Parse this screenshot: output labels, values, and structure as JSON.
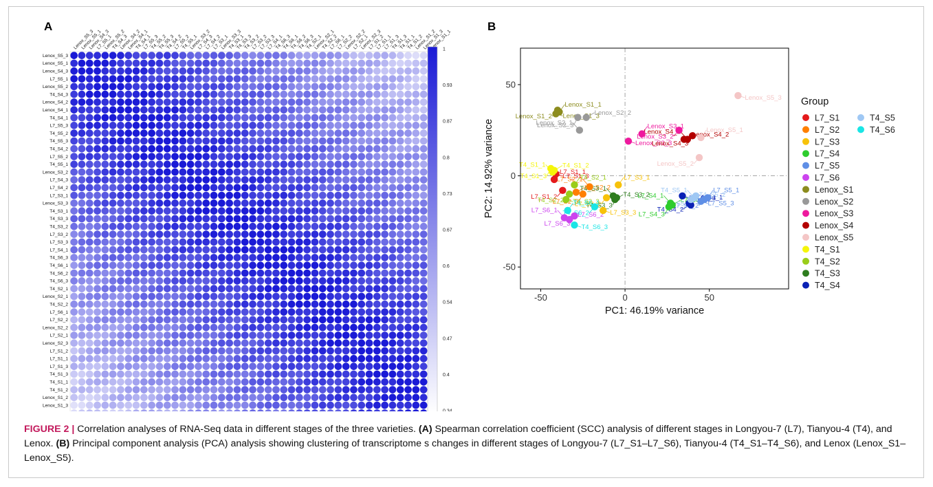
{
  "panel_labels": {
    "a": "A",
    "b": "B"
  },
  "caption": {
    "figure_label": "FIGURE 2 |",
    "sentence1": " Correlation analyses of RNA-Seq data in different stages of the three varieties. ",
    "part_a_marker": "(A)",
    "part_a_text": " Spearman correlation coefficient (SCC) analysis of different stages in Longyou-7 (L7), Tianyou-4 (T4), and Lenox. ",
    "part_b_marker": "(B)",
    "part_b_text": " Principal component analysis (PCA) analysis showing clustering of transcriptome s changes in different stages of Longyou-7 (L7_S1–L7_S6), Tianyou-4 (T4_S1–T4_S6), and Lenox (Lenox_S1–Lenox_S5)."
  },
  "chart_data": [
    {
      "type": "heatmap",
      "title": "",
      "row_labels": [
        "Lenox_S5_3",
        "Lenox_S5_1",
        "Lenox_S4_3",
        "L7_S5_1",
        "Lenox_S5_2",
        "T4_S4_3",
        "Lenox_S4_2",
        "Lenox_S4_1",
        "T4_S4_1",
        "L7_S5_3",
        "T4_S5_2",
        "T4_S5_3",
        "T4_S4_2",
        "L7_S5_2",
        "T4_S5_1",
        "Lenox_S3_2",
        "L7_S4_3",
        "L7_S4_2",
        "L7_S3_1",
        "Lenox_S3_3",
        "T4_S3_1",
        "T4_S3_3",
        "T4_S3_2",
        "L7_S3_2",
        "L7_S3_3",
        "L7_S4_1",
        "T4_S6_3",
        "T4_S6_1",
        "T4_S6_2",
        "T4_S6_3",
        "T4_S2_1",
        "Lenox_S2_1",
        "T4_S2_2",
        "L7_S6_1",
        "L7_S2_2",
        "Lenox_S2_2",
        "L7_S2_1",
        "Lenox_S2_3",
        "L7_S1_2",
        "L7_S1_1",
        "L7_S1_3",
        "T4_S1_3",
        "T4_S1_1",
        "T4_S1_2",
        "Lenox_S1_2",
        "Lenox_S1_3",
        "Lenox_S1_1"
      ],
      "col_labels": [
        "Lenox_S5_3",
        "Lenox_S5_1",
        "Lenox_S4_3",
        "L7_S5_1",
        "Lenox_S5_2",
        "T4_S4_3",
        "Lenox_S4_2",
        "Lenox_S4_1",
        "T4_S4_1",
        "L7_S5_3",
        "T4_S5_2",
        "T4_S5_3",
        "T4_S4_2",
        "L7_S5_2",
        "T4_S5_1",
        "Lenox_S3_2",
        "L7_S4_3",
        "L7_S4_2",
        "L7_S3_1",
        "Lenox_S3_3",
        "T4_S3_1",
        "T4_S3_3",
        "T4_S3_2",
        "L7_S3_2",
        "L7_S3_3",
        "L7_S4_1",
        "T4_S6_3",
        "T4_S6_1",
        "T4_S6_2",
        "T4_S6_3",
        "T4_S2_1",
        "Lenox_S2_1",
        "T4_S2_2",
        "L7_S6_1",
        "L7_S2_2",
        "Lenox_S2_2",
        "L7_S2_1",
        "Lenox_S2_3",
        "L7_S1_2",
        "L7_S1_1",
        "L7_S1_3",
        "T4_S1_3",
        "T4_S1_1",
        "T4_S1_2",
        "Lenox_S1_2",
        "Lenox_S1_3",
        "Lenox_S1_1"
      ],
      "diagonal_value": 1,
      "value_range": [
        0.34,
        1
      ],
      "colorbar_ticks": [
        "1",
        "0.93",
        "0.87",
        "0.8",
        "0.73",
        "0.67",
        "0.6",
        "0.54",
        "0.47",
        "0.4",
        "0.34"
      ],
      "colors": {
        "low": "#ffffff",
        "high": "#1a1ad6",
        "cell_text": "#ffffff"
      }
    },
    {
      "type": "scatter",
      "title": "",
      "xlabel": "PC1: 46.19% variance",
      "ylabel": "PC2: 14.92% variance",
      "xlim": [
        -62,
        97
      ],
      "ylim": [
        -62,
        70
      ],
      "xticks": [
        -50,
        0,
        50
      ],
      "yticks": [
        -50,
        0,
        50
      ],
      "reference_lines": {
        "x": 0,
        "y": 0
      },
      "legend": {
        "title": "Group",
        "position": "right"
      },
      "series": [
        {
          "name": "L7_S1",
          "color": "#e41a1c",
          "points": [
            {
              "x": -42,
              "y": -2,
              "label": "L7_S1_1"
            },
            {
              "x": -37,
              "y": -8,
              "label": "L7_S1_2"
            },
            {
              "x": -41,
              "y": 1,
              "label": "L7_S1_3"
            }
          ]
        },
        {
          "name": "L7_S2",
          "color": "#ff7f00",
          "points": [
            {
              "x": -21,
              "y": -6,
              "label": "L7_S2_1"
            },
            {
              "x": -29,
              "y": -9,
              "label": "L7_S2_2"
            },
            {
              "x": -25,
              "y": -10,
              "label": "L7_S2_3"
            }
          ]
        },
        {
          "name": "L7_S3",
          "color": "#f7c20a",
          "points": [
            {
              "x": -4,
              "y": -5,
              "label": "L7_S3_1"
            },
            {
              "x": -11,
              "y": -12,
              "label": "L7_S3_2"
            },
            {
              "x": -13,
              "y": -19,
              "label": "L7_S3_3"
            }
          ]
        },
        {
          "name": "L7_S4",
          "color": "#2ecc2e",
          "points": [
            {
              "x": 27,
              "y": -15,
              "label": "L7_S4_1"
            },
            {
              "x": 28,
              "y": -16,
              "label": "L7_S4_2"
            },
            {
              "x": 26,
              "y": -17,
              "label": "L7_S4_3"
            }
          ]
        },
        {
          "name": "L7_S5",
          "color": "#5f8fe6",
          "points": [
            {
              "x": 49,
              "y": -12,
              "label": "L7_S5_1"
            },
            {
              "x": 47,
              "y": -13,
              "label": "L7_S5_2"
            },
            {
              "x": 45,
              "y": -14,
              "label": "L7_S5_3"
            }
          ]
        },
        {
          "name": "L7_S6",
          "color": "#cc44ee",
          "points": [
            {
              "x": -36,
              "y": -23,
              "label": "L7_S6_1"
            },
            {
              "x": -33,
              "y": -24,
              "label": "L7_S6_2"
            },
            {
              "x": -30,
              "y": -22,
              "label": "L7_S6_3"
            }
          ]
        },
        {
          "name": "Lenox_S1",
          "color": "#8c8c1e",
          "points": [
            {
              "x": -39,
              "y": 35,
              "label": "Lenox_S1_1"
            },
            {
              "x": -40,
              "y": 36,
              "label": "Lenox_S1_2"
            },
            {
              "x": -41,
              "y": 34,
              "label": "Lenox_S1_3"
            }
          ]
        },
        {
          "name": "Lenox_S2",
          "color": "#999999",
          "points": [
            {
              "x": -27,
              "y": 25,
              "label": "Lenox_S2_1"
            },
            {
              "x": -23,
              "y": 32,
              "label": "Lenox_S2_2"
            },
            {
              "x": -28,
              "y": 32,
              "label": "Lenox_S2_3"
            }
          ]
        },
        {
          "name": "Lenox_S3",
          "color": "#ee1a9e",
          "points": [
            {
              "x": 10,
              "y": 23,
              "label": "Lenox_S3_1"
            },
            {
              "x": 32,
              "y": 25,
              "label": "Lenox_S3_2"
            },
            {
              "x": 2,
              "y": 19,
              "label": "Lenox_S3_3"
            }
          ]
        },
        {
          "name": "Lenox_S4",
          "color": "#b30000",
          "points": [
            {
              "x": 37,
              "y": 20,
              "label": "Lenox_S4_1"
            },
            {
              "x": 35,
              "y": 20,
              "label": "Lenox_S4_2"
            },
            {
              "x": 40,
              "y": 22,
              "label": "Lenox_S4_3"
            }
          ]
        },
        {
          "name": "Lenox_S5",
          "color": "#f4c6c6",
          "points": [
            {
              "x": 45,
              "y": 21,
              "label": "Lenox_S5_1"
            },
            {
              "x": 44,
              "y": 10,
              "label": "Lenox_S5_2"
            },
            {
              "x": 67,
              "y": 44,
              "label": "Lenox_S5_3"
            }
          ]
        },
        {
          "name": "T4_S1",
          "color": "#f5f50a",
          "points": [
            {
              "x": -43,
              "y": 2,
              "label": "T4_S1_1"
            },
            {
              "x": -42,
              "y": 3,
              "label": "T4_S1_2"
            },
            {
              "x": -44,
              "y": 4,
              "label": "T4_S1_3"
            }
          ]
        },
        {
          "name": "T4_S2",
          "color": "#9acd1a",
          "points": [
            {
              "x": -30,
              "y": -5,
              "label": "T4_S2_1"
            },
            {
              "x": -33,
              "y": -10,
              "label": "T4_S2_2"
            },
            {
              "x": -35,
              "y": -13,
              "label": "T4_S2_3"
            }
          ]
        },
        {
          "name": "T4_S3",
          "color": "#2e7d1e",
          "points": [
            {
              "x": -7,
              "y": -11,
              "label": "T4_S3_1"
            },
            {
              "x": -6,
              "y": -13,
              "label": "T4_S3_2"
            },
            {
              "x": -5,
              "y": -12,
              "label": "T4_S3_3"
            }
          ]
        },
        {
          "name": "T4_S4",
          "color": "#0a22b5",
          "points": [
            {
              "x": 39,
              "y": -16,
              "label": "T4_S4_1"
            },
            {
              "x": 38,
              "y": -15,
              "label": "T4_S4_2"
            },
            {
              "x": 34,
              "y": -11,
              "label": "T4_S4_3"
            }
          ]
        },
        {
          "name": "T4_S5",
          "color": "#9fc8f4",
          "points": [
            {
              "x": 41,
              "y": -12,
              "label": "T4_S5_1"
            },
            {
              "x": 39,
              "y": -13,
              "label": "T4_S5_2"
            },
            {
              "x": 42,
              "y": -11,
              "label": "T4_S5_3"
            }
          ]
        },
        {
          "name": "T4_S6",
          "color": "#1ae5e5",
          "points": [
            {
              "x": -34,
              "y": -19,
              "label": "T4_S6_1"
            },
            {
              "x": -18,
              "y": -17,
              "label": "T4_S6_2"
            },
            {
              "x": -30,
              "y": -27,
              "label": "T4_S6_3"
            }
          ]
        }
      ]
    }
  ]
}
